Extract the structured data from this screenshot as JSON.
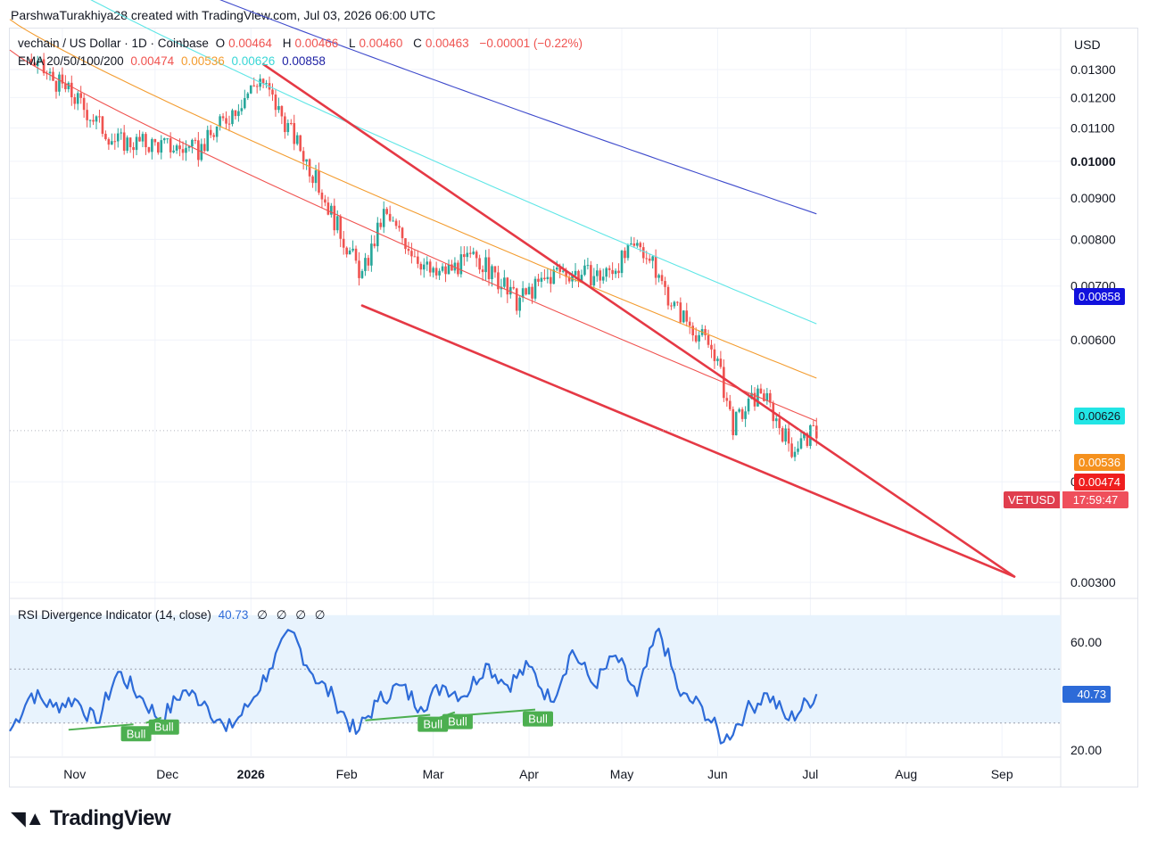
{
  "header": {
    "credit": "ParshwaTurakhiya28 created with TradingView.com, Jul 03, 2026 06:00 UTC"
  },
  "legend": {
    "symbol": "vechain / US Dollar · 1D · Coinbase",
    "open_label": "O",
    "open": "0.00464",
    "high_label": "H",
    "high": "0.00466",
    "low_label": "L",
    "low": "0.00460",
    "close_label": "C",
    "close": "0.00463",
    "change": "−0.00001 (−0.22%)",
    "ema_label": "EMA 20/50/100/200",
    "ema20": "0.00474",
    "ema50": "0.00536",
    "ema100": "0.00626",
    "ema200": "0.00858"
  },
  "rsi_legend": {
    "label": "RSI Divergence Indicator (14, close)",
    "value": "40.73",
    "nulls": [
      "∅",
      "∅",
      "∅",
      "∅"
    ]
  },
  "price_axis": {
    "currency": "USD",
    "ticks": [
      "0.01300",
      "0.01200",
      "0.01100",
      "0.01000",
      "0.00900",
      "0.00800",
      "0.00700",
      "0.00600",
      "0.00400",
      "0.00300"
    ]
  },
  "price_tags": {
    "ema200": "0.00858",
    "ema100": "0.00626",
    "ema50": "0.00536",
    "ema20": "0.00474",
    "symbol": "VETUSD",
    "countdown": "17:59:47"
  },
  "rsi_axis": {
    "ticks": [
      "60.00",
      "20.00"
    ],
    "current": "40.73"
  },
  "time_axis": {
    "labels": [
      "Nov",
      "Dec",
      "2026",
      "Feb",
      "Mar",
      "Apr",
      "May",
      "Jun",
      "Jul",
      "Aug",
      "Sep"
    ]
  },
  "divergence_labels": [
    "Bull",
    "Bull",
    "Bull",
    "Bull",
    "Bull"
  ],
  "brand": "TradingView",
  "colors": {
    "up": "#26a69a",
    "down": "#ef5350",
    "trendline": "#e53945",
    "ema20": "#f05350",
    "ema50": "#f39c2f",
    "ema100": "#5ee6e6",
    "ema200": "#3f4bcc",
    "rsi": "#2d6bd8",
    "rsi_band": "#e8f3fd",
    "bull": "#4caf50"
  },
  "chart_data": [
    {
      "type": "candlestick",
      "title": "vechain / US Dollar · 1D · Coinbase",
      "y_scale": "log",
      "ylim": [
        0.0029,
        0.014
      ],
      "x_range": [
        "2025-10-15",
        "2026-09-20"
      ],
      "last_candle": {
        "date": "2026-07-03",
        "open": 0.00464,
        "high": 0.00466,
        "low": 0.0046,
        "close": 0.00463
      },
      "close_approx": [
        {
          "date": "2025-10-21",
          "close": 0.0134
        },
        {
          "date": "2025-11-04",
          "close": 0.0121
        },
        {
          "date": "2025-11-18",
          "close": 0.0106
        },
        {
          "date": "2025-12-01",
          "close": 0.0105
        },
        {
          "date": "2025-12-15",
          "close": 0.0103
        },
        {
          "date": "2026-01-04",
          "close": 0.0127
        },
        {
          "date": "2026-01-18",
          "close": 0.0102
        },
        {
          "date": "2026-01-31",
          "close": 0.008
        },
        {
          "date": "2026-02-06",
          "close": 0.0072
        },
        {
          "date": "2026-02-13",
          "close": 0.0086
        },
        {
          "date": "2026-03-01",
          "close": 0.0072
        },
        {
          "date": "2026-03-15",
          "close": 0.0076
        },
        {
          "date": "2026-03-28",
          "close": 0.0067
        },
        {
          "date": "2026-04-10",
          "close": 0.0073
        },
        {
          "date": "2026-04-25",
          "close": 0.0072
        },
        {
          "date": "2026-05-07",
          "close": 0.0079
        },
        {
          "date": "2026-05-18",
          "close": 0.0066
        },
        {
          "date": "2026-05-31",
          "close": 0.0058
        },
        {
          "date": "2026-06-06",
          "close": 0.0047
        },
        {
          "date": "2026-06-15",
          "close": 0.0052
        },
        {
          "date": "2026-06-25",
          "close": 0.0044
        },
        {
          "date": "2026-07-03",
          "close": 0.00463
        }
      ],
      "series": [
        {
          "name": "EMA 20",
          "last": 0.00474
        },
        {
          "name": "EMA 50",
          "last": 0.00536
        },
        {
          "name": "EMA 100",
          "last": 0.00626
        },
        {
          "name": "EMA 200",
          "last": 0.00858
        }
      ],
      "trendlines": [
        {
          "name": "upper",
          "from": {
            "date": "2026-01-05",
            "price": 0.0132
          },
          "to": {
            "date": "2026-09-05",
            "price": 0.00305
          }
        },
        {
          "name": "lower",
          "from": {
            "date": "2026-02-06",
            "price": 0.00662
          },
          "to": {
            "date": "2026-09-05",
            "price": 0.00305
          }
        }
      ]
    },
    {
      "type": "line",
      "title": "RSI Divergence Indicator (14, close)",
      "ylim": [
        15,
        70
      ],
      "band": [
        30,
        70
      ],
      "levels": [
        50,
        30
      ],
      "last": 40.73,
      "x": [
        "2025-10-15",
        "2025-10-22",
        "2025-10-29",
        "2025-11-05",
        "2025-11-12",
        "2025-11-19",
        "2025-11-26",
        "2025-12-03",
        "2025-12-10",
        "2025-12-17",
        "2025-12-24",
        "2025-12-31",
        "2026-01-07",
        "2026-01-14",
        "2026-01-21",
        "2026-01-28",
        "2026-02-04",
        "2026-02-11",
        "2026-02-18",
        "2026-02-25",
        "2026-03-04",
        "2026-03-11",
        "2026-03-18",
        "2026-03-25",
        "2026-04-01",
        "2026-04-08",
        "2026-04-15",
        "2026-04-22",
        "2026-04-29",
        "2026-05-06",
        "2026-05-13",
        "2026-05-20",
        "2026-05-27",
        "2026-06-03",
        "2026-06-10",
        "2026-06-17",
        "2026-06-24",
        "2026-07-03"
      ],
      "values": [
        27,
        41,
        36,
        39,
        30,
        49,
        40,
        31,
        42,
        38,
        27,
        36,
        50,
        64,
        48,
        39,
        26,
        38,
        44,
        36,
        44,
        40,
        52,
        44,
        51,
        38,
        57,
        44,
        55,
        40,
        65,
        40,
        36,
        23,
        34,
        41,
        31,
        40.73
      ],
      "divergences": [
        {
          "label": "Bull",
          "from": "2025-11-03",
          "to": "2025-11-24"
        },
        {
          "label": "Bull",
          "from": "2025-11-28",
          "to": "2025-12-03"
        },
        {
          "label": "Bull",
          "from": "2026-02-07",
          "to": "2026-02-28"
        },
        {
          "label": "Bull",
          "from": "2026-03-03",
          "to": "2026-03-08"
        },
        {
          "label": "Bull",
          "from": "2026-03-12",
          "to": "2026-04-03"
        }
      ]
    }
  ]
}
